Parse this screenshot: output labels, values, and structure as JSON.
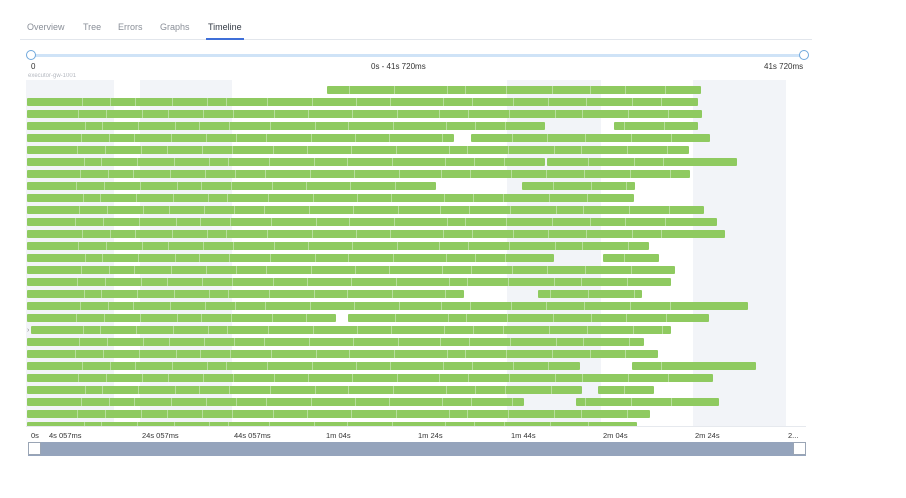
{
  "tabs": [
    "Overview",
    "Tree",
    "Errors",
    "Graphs",
    "Timeline"
  ],
  "active_tab": "Timeline",
  "range": {
    "start": "0",
    "middle": "0s - 41s 720ms",
    "end": "41s 720ms"
  },
  "cut_label": "executor-gw-1001",
  "axis_ticks": [
    "0s",
    "4s 057ms",
    "24s 057ms",
    "44s 057ms",
    "1m 04s",
    "1m 24s",
    "1m 44s",
    "2m 04s",
    "2m 24s",
    "2..."
  ],
  "colors": {
    "bar": "#8fca60",
    "accent": "#3f6fd8",
    "scrollbar": "#95a4bc"
  },
  "icons": {
    "row_expand": "chevron-right-icon"
  },
  "rows": [
    [
      [
        301,
        675
      ]
    ],
    [
      [
        1,
        672
      ]
    ],
    [
      [
        1,
        676
      ]
    ],
    [
      [
        1,
        519
      ],
      [
        588,
        672
      ]
    ],
    [
      [
        1,
        428
      ],
      [
        445,
        684
      ]
    ],
    [
      [
        1,
        663
      ]
    ],
    [
      [
        1,
        519
      ],
      [
        521,
        711
      ]
    ],
    [
      [
        1,
        664
      ]
    ],
    [
      [
        1,
        410
      ],
      [
        496,
        609
      ]
    ],
    [
      [
        1,
        608
      ]
    ],
    [
      [
        1,
        678
      ]
    ],
    [
      [
        1,
        691
      ]
    ],
    [
      [
        1,
        699
      ]
    ],
    [
      [
        1,
        623
      ]
    ],
    [
      [
        1,
        528
      ],
      [
        577,
        633
      ]
    ],
    [
      [
        1,
        649
      ]
    ],
    [
      [
        1,
        645
      ]
    ],
    [
      [
        1,
        438
      ],
      [
        512,
        616
      ]
    ],
    [
      [
        1,
        722
      ]
    ],
    [
      [
        1,
        310
      ],
      [
        322,
        683
      ]
    ],
    [
      [
        5,
        645
      ]
    ],
    [
      [
        1,
        618
      ]
    ],
    [
      [
        1,
        632
      ]
    ],
    [
      [
        1,
        554
      ],
      [
        606,
        730
      ]
    ],
    [
      [
        1,
        687
      ]
    ],
    [
      [
        1,
        556
      ],
      [
        572,
        628
      ]
    ],
    [
      [
        1,
        498
      ],
      [
        550,
        693
      ]
    ],
    [
      [
        1,
        624
      ]
    ],
    [
      [
        1,
        611
      ]
    ]
  ]
}
